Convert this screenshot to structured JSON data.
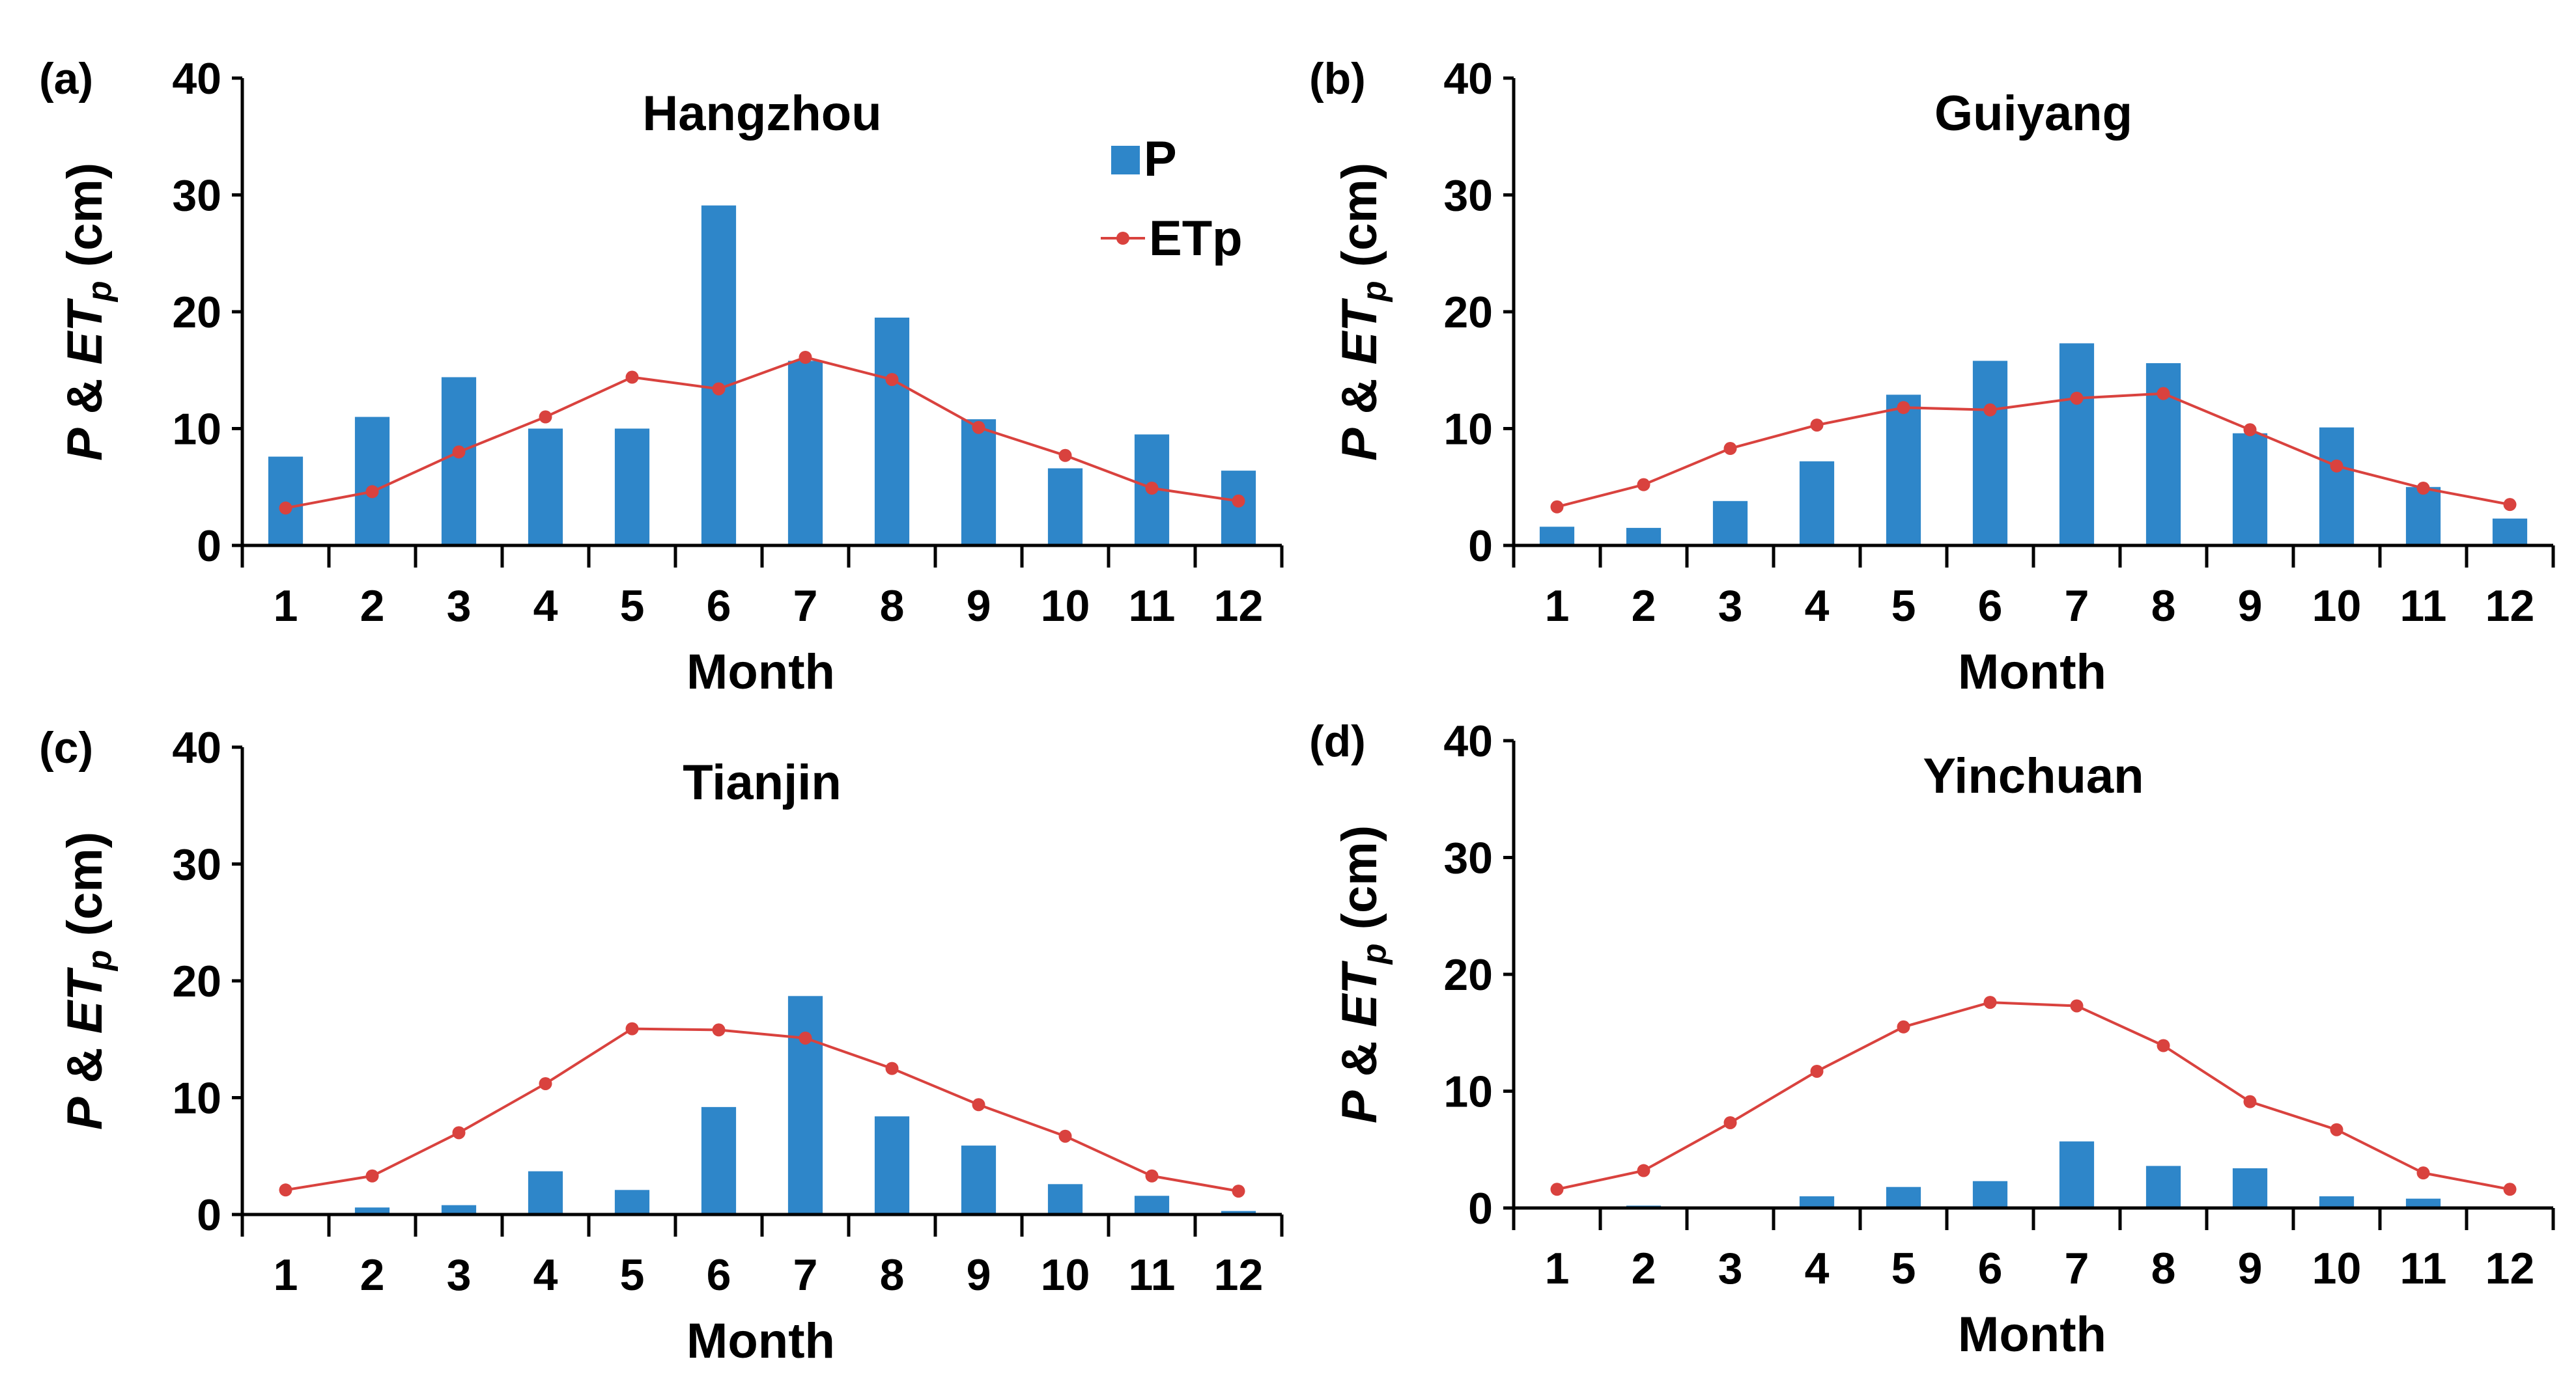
{
  "colors": {
    "bar": "#2e86c9",
    "line": "#d9423e",
    "axis": "#000000"
  },
  "legend": {
    "items": [
      "P",
      "ETp"
    ]
  },
  "chart_data": [
    {
      "type": "bar+line",
      "panel_label": "(a)",
      "title": "Hangzhou",
      "xlabel": "Month",
      "ylabel": "P & ET_p (cm)",
      "ylim": [
        0,
        40
      ],
      "yticks": [
        0,
        10,
        20,
        30,
        40
      ],
      "categories": [
        "1",
        "2",
        "3",
        "4",
        "5",
        "6",
        "7",
        "8",
        "9",
        "10",
        "11",
        "12"
      ],
      "series": [
        {
          "name": "P",
          "kind": "bar",
          "values": [
            7.6,
            11.0,
            14.4,
            10.0,
            10.0,
            29.1,
            15.8,
            19.5,
            10.8,
            6.6,
            9.5,
            6.4
          ]
        },
        {
          "name": "ETp",
          "kind": "line",
          "values": [
            3.2,
            4.6,
            8.0,
            11.0,
            14.4,
            13.4,
            16.1,
            14.2,
            10.1,
            7.7,
            4.9,
            3.8
          ]
        }
      ],
      "legend_position": "top-right"
    },
    {
      "type": "bar+line",
      "panel_label": "(b)",
      "title": "Guiyang",
      "xlabel": "Month",
      "ylabel": "P & ET_p (cm)",
      "ylim": [
        0,
        40
      ],
      "yticks": [
        0,
        10,
        20,
        30,
        40
      ],
      "categories": [
        "1",
        "2",
        "3",
        "4",
        "5",
        "6",
        "7",
        "8",
        "9",
        "10",
        "11",
        "12"
      ],
      "series": [
        {
          "name": "P",
          "kind": "bar",
          "values": [
            1.6,
            1.5,
            3.8,
            7.2,
            12.9,
            15.8,
            17.3,
            15.6,
            9.6,
            10.1,
            5.0,
            2.3
          ]
        },
        {
          "name": "ETp",
          "kind": "line",
          "values": [
            3.3,
            5.2,
            8.3,
            10.3,
            11.8,
            11.6,
            12.6,
            13.0,
            9.9,
            6.8,
            4.9,
            3.5
          ]
        }
      ]
    },
    {
      "type": "bar+line",
      "panel_label": "(c)",
      "title": "Tianjin",
      "xlabel": "Month",
      "ylabel": "P & ET_p (cm)",
      "ylim": [
        0,
        40
      ],
      "yticks": [
        0,
        10,
        20,
        30,
        40
      ],
      "categories": [
        "1",
        "2",
        "3",
        "4",
        "5",
        "6",
        "7",
        "8",
        "9",
        "10",
        "11",
        "12"
      ],
      "series": [
        {
          "name": "P",
          "kind": "bar",
          "values": [
            0.1,
            0.6,
            0.8,
            3.7,
            2.1,
            9.2,
            18.7,
            8.4,
            5.9,
            2.6,
            1.6,
            0.3
          ]
        },
        {
          "name": "ETp",
          "kind": "line",
          "values": [
            2.1,
            3.3,
            7.0,
            11.2,
            15.9,
            15.8,
            15.1,
            12.5,
            9.4,
            6.7,
            3.3,
            2.0
          ]
        }
      ]
    },
    {
      "type": "bar+line",
      "panel_label": "(d)",
      "title": "Yinchuan",
      "xlabel": "Month",
      "ylabel": "P & ET_p (cm)",
      "ylim": [
        0,
        40
      ],
      "yticks": [
        0,
        10,
        20,
        30,
        40
      ],
      "categories": [
        "1",
        "2",
        "3",
        "4",
        "5",
        "6",
        "7",
        "8",
        "9",
        "10",
        "11",
        "12"
      ],
      "series": [
        {
          "name": "P",
          "kind": "bar",
          "values": [
            0.1,
            0.2,
            0.0,
            1.0,
            1.8,
            2.3,
            5.7,
            3.6,
            3.4,
            1.0,
            0.8,
            0.0
          ]
        },
        {
          "name": "ETp",
          "kind": "line",
          "values": [
            1.6,
            3.2,
            7.3,
            11.7,
            15.5,
            17.6,
            17.3,
            13.9,
            9.1,
            6.7,
            3.0,
            1.6
          ]
        }
      ]
    }
  ]
}
